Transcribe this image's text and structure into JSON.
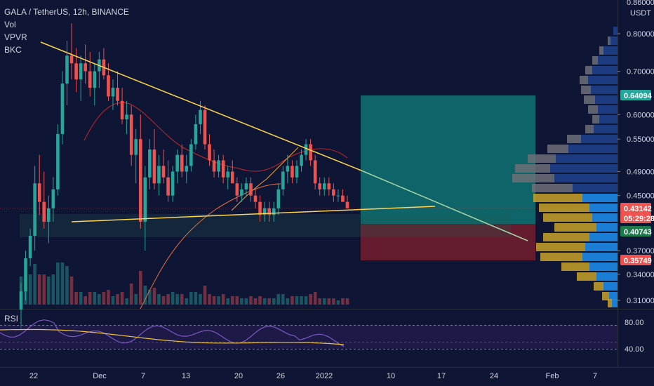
{
  "header": {
    "symbol_line": "GALA / TetherUS, 12h, BINANCE",
    "indicators": [
      "Vol",
      "VPVR",
      "BKC"
    ]
  },
  "rsi": {
    "label": "RSI",
    "levels": [
      "80.00",
      "40.00"
    ]
  },
  "colors": {
    "background": "#0f1535",
    "up": "#26a69a",
    "down": "#ef5350",
    "trendline": "#ffd54f",
    "rsi_line": "#7e57c2",
    "rsi_ma": "#f0c33c",
    "profit_zone": "#0f7f7a",
    "loss_zone": "#7a1e2e"
  },
  "chart_data": {
    "type": "candlestick",
    "title": "GALA / TetherUS, 12h, BINANCE",
    "quote_currency": "USDT",
    "y_scale": "log",
    "y_ticks": [
      "0.80000",
      "0.70000",
      "0.60000",
      "0.55000",
      "0.49000",
      "0.45000",
      "0.37000",
      "0.34000",
      "0.31000"
    ],
    "x_ticks": [
      "22",
      "Dec",
      "7",
      "13",
      "20",
      "26",
      "2022",
      "10",
      "17",
      "24",
      "Feb",
      "7"
    ],
    "price_badges": [
      {
        "value": "0.64094",
        "kind": "target"
      },
      {
        "value": "0.43142",
        "kind": "last"
      },
      {
        "value": "05:29:28",
        "kind": "countdown"
      },
      {
        "value": "0.40743",
        "kind": "entry"
      },
      {
        "value": "0.35749",
        "kind": "stop"
      }
    ],
    "candles": [
      [
        0.3,
        0.33,
        0.28,
        0.32
      ],
      [
        0.32,
        0.37,
        0.31,
        0.36
      ],
      [
        0.36,
        0.4,
        0.35,
        0.39
      ],
      [
        0.39,
        0.5,
        0.37,
        0.47
      ],
      [
        0.47,
        0.52,
        0.42,
        0.44
      ],
      [
        0.44,
        0.49,
        0.4,
        0.41
      ],
      [
        0.41,
        0.45,
        0.38,
        0.43
      ],
      [
        0.43,
        0.48,
        0.41,
        0.46
      ],
      [
        0.46,
        0.58,
        0.45,
        0.56
      ],
      [
        0.56,
        0.7,
        0.54,
        0.67
      ],
      [
        0.67,
        0.78,
        0.62,
        0.74
      ],
      [
        0.74,
        0.83,
        0.68,
        0.72
      ],
      [
        0.72,
        0.76,
        0.65,
        0.68
      ],
      [
        0.68,
        0.74,
        0.63,
        0.72
      ],
      [
        0.72,
        0.77,
        0.67,
        0.7
      ],
      [
        0.7,
        0.75,
        0.64,
        0.66
      ],
      [
        0.66,
        0.72,
        0.62,
        0.7
      ],
      [
        0.7,
        0.75,
        0.66,
        0.73
      ],
      [
        0.73,
        0.76,
        0.68,
        0.69
      ],
      [
        0.69,
        0.72,
        0.63,
        0.64
      ],
      [
        0.64,
        0.68,
        0.61,
        0.66
      ],
      [
        0.66,
        0.7,
        0.62,
        0.63
      ],
      [
        0.63,
        0.66,
        0.58,
        0.59
      ],
      [
        0.59,
        0.63,
        0.56,
        0.6
      ],
      [
        0.6,
        0.62,
        0.5,
        0.52
      ],
      [
        0.52,
        0.57,
        0.47,
        0.55
      ],
      [
        0.55,
        0.6,
        0.4,
        0.41
      ],
      [
        0.41,
        0.5,
        0.37,
        0.48
      ],
      [
        0.48,
        0.55,
        0.46,
        0.53
      ],
      [
        0.53,
        0.57,
        0.46,
        0.47
      ],
      [
        0.47,
        0.52,
        0.45,
        0.5
      ],
      [
        0.5,
        0.53,
        0.47,
        0.48
      ],
      [
        0.48,
        0.51,
        0.44,
        0.45
      ],
      [
        0.45,
        0.5,
        0.44,
        0.49
      ],
      [
        0.49,
        0.53,
        0.47,
        0.52
      ],
      [
        0.52,
        0.54,
        0.48,
        0.49
      ],
      [
        0.49,
        0.52,
        0.47,
        0.5
      ],
      [
        0.5,
        0.55,
        0.49,
        0.54
      ],
      [
        0.54,
        0.6,
        0.53,
        0.58
      ],
      [
        0.58,
        0.63,
        0.56,
        0.61
      ],
      [
        0.61,
        0.62,
        0.53,
        0.54
      ],
      [
        0.54,
        0.56,
        0.5,
        0.51
      ],
      [
        0.51,
        0.53,
        0.48,
        0.49
      ],
      [
        0.49,
        0.52,
        0.48,
        0.51
      ],
      [
        0.51,
        0.52,
        0.47,
        0.48
      ],
      [
        0.48,
        0.5,
        0.46,
        0.49
      ],
      [
        0.49,
        0.51,
        0.47,
        0.47
      ],
      [
        0.47,
        0.48,
        0.44,
        0.45
      ],
      [
        0.45,
        0.47,
        0.44,
        0.46
      ],
      [
        0.46,
        0.48,
        0.45,
        0.47
      ],
      [
        0.47,
        0.48,
        0.44,
        0.45
      ],
      [
        0.45,
        0.46,
        0.43,
        0.44
      ],
      [
        0.44,
        0.45,
        0.41,
        0.42
      ],
      [
        0.42,
        0.44,
        0.41,
        0.43
      ],
      [
        0.43,
        0.44,
        0.41,
        0.42
      ],
      [
        0.42,
        0.44,
        0.41,
        0.43
      ],
      [
        0.43,
        0.47,
        0.42,
        0.46
      ],
      [
        0.46,
        0.5,
        0.45,
        0.49
      ],
      [
        0.49,
        0.52,
        0.47,
        0.5
      ],
      [
        0.5,
        0.51,
        0.47,
        0.48
      ],
      [
        0.48,
        0.51,
        0.47,
        0.5
      ],
      [
        0.5,
        0.53,
        0.49,
        0.52
      ],
      [
        0.52,
        0.55,
        0.51,
        0.54
      ],
      [
        0.54,
        0.55,
        0.5,
        0.51
      ],
      [
        0.51,
        0.52,
        0.46,
        0.47
      ],
      [
        0.47,
        0.48,
        0.45,
        0.46
      ],
      [
        0.46,
        0.48,
        0.45,
        0.47
      ],
      [
        0.47,
        0.48,
        0.45,
        0.46
      ],
      [
        0.46,
        0.47,
        0.44,
        0.45
      ],
      [
        0.45,
        0.46,
        0.44,
        0.45
      ],
      [
        0.45,
        0.46,
        0.44,
        0.44
      ],
      [
        0.44,
        0.45,
        0.43,
        0.43
      ]
    ]
  }
}
